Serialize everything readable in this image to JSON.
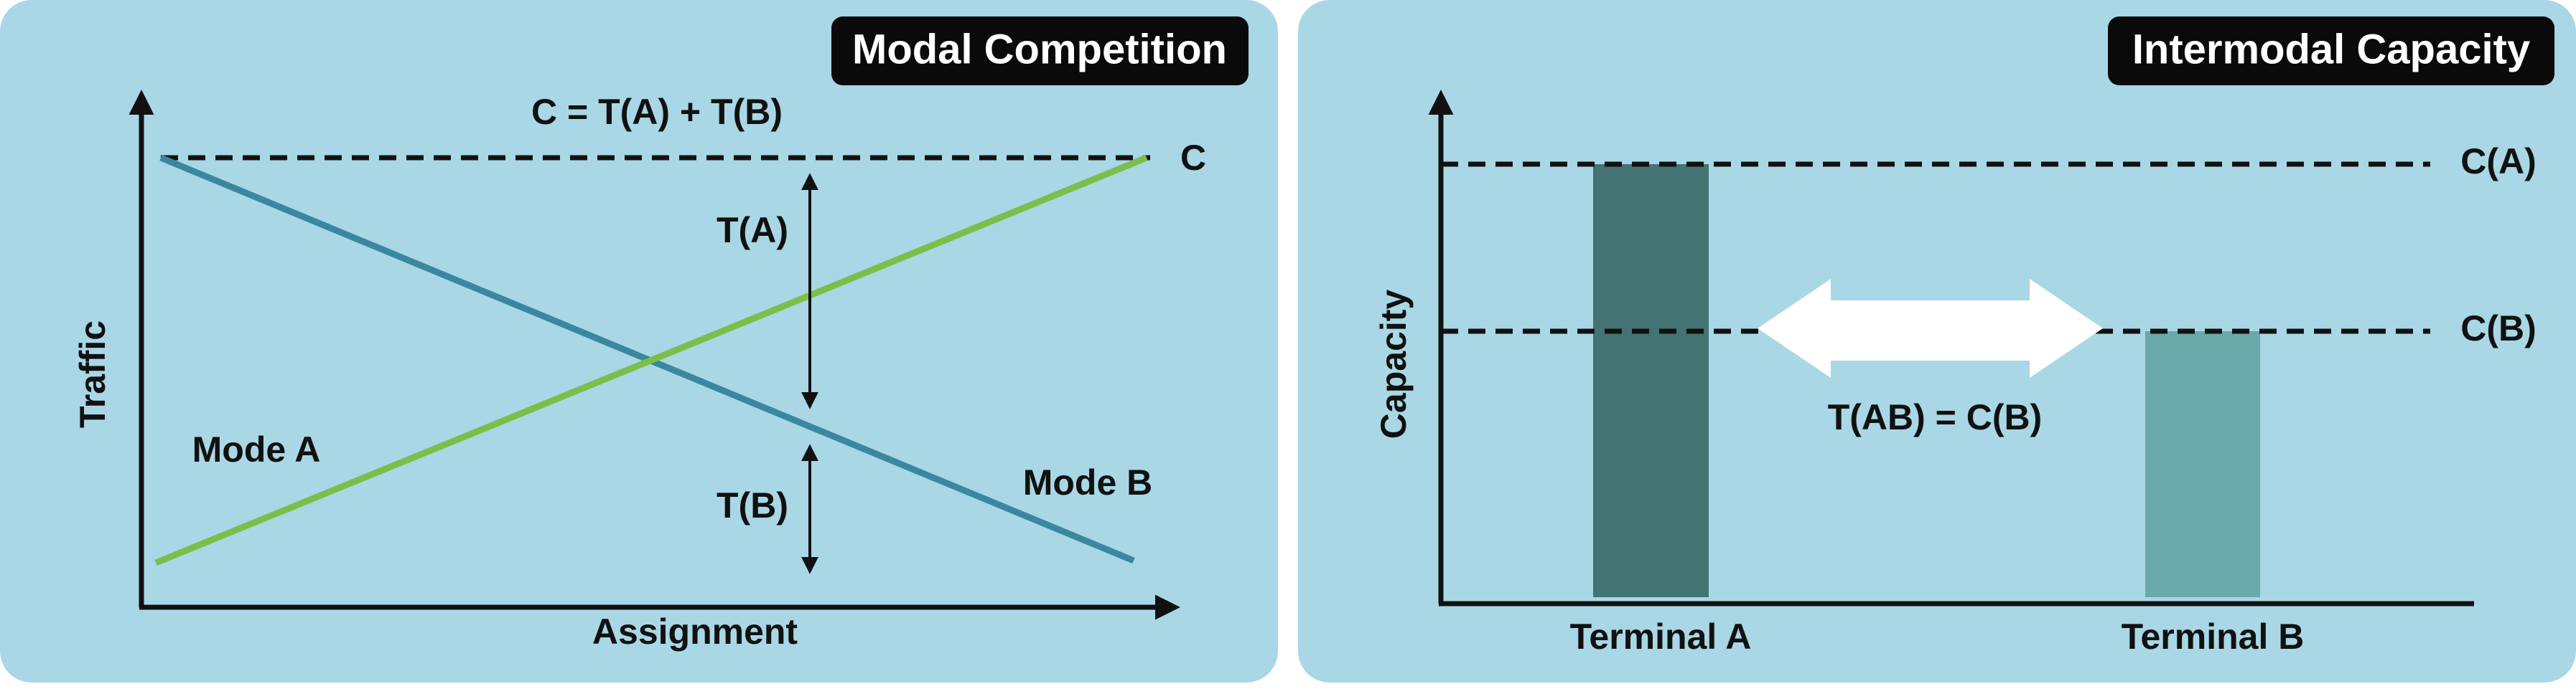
{
  "panels": [
    {
      "title": "Modal Competition",
      "y_axis_label": "Traffic",
      "x_axis_label": "Assignment",
      "equation": "C = T(A) + T(B)",
      "capacity_label": "C",
      "segment_labels": [
        "T(A)",
        "T(B)"
      ],
      "line_labels": [
        "Mode A",
        "Mode B"
      ]
    },
    {
      "title": "Intermodal Capacity",
      "y_axis_label": "Capacity",
      "capacity_labels": [
        "C(A)",
        "C(B)"
      ],
      "transfer_label": "T(AB) = C(B)",
      "terminals": [
        "Terminal A",
        "Terminal B"
      ]
    }
  ]
}
